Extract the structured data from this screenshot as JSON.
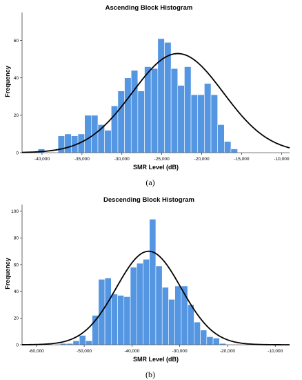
{
  "chart_data": [
    {
      "type": "bar",
      "title": "Ascending Block Histogram",
      "xlabel": "SMR Level (dB)",
      "ylabel": "Frequency",
      "caption": "(a)",
      "xlim": [
        -42500,
        -9000
      ],
      "ylim": [
        0,
        75
      ],
      "xticks": [
        -40000,
        -35000,
        -30000,
        -25000,
        -20000,
        -15000,
        -10000
      ],
      "xtick_labels": [
        "-40,000",
        "-35,000",
        "-30,000",
        "-25,000",
        "-20,000",
        "-15,000",
        "-10,000"
      ],
      "yticks": [
        0,
        20,
        40,
        60
      ],
      "ytick_labels": [
        "0",
        "20",
        "40",
        "60"
      ],
      "bin_start": -40500,
      "bin_width": 833,
      "values": [
        2,
        0,
        0,
        9,
        10,
        9,
        10,
        20,
        20,
        15,
        12,
        25,
        33,
        40,
        44,
        33,
        46,
        45,
        61,
        59,
        45,
        36,
        46,
        31,
        31,
        37,
        31,
        15,
        6,
        2
      ],
      "normal_curve": {
        "mean": -23000,
        "sd": 5700,
        "peak": 53
      },
      "grid": false
    },
    {
      "type": "bar",
      "title": "Descending Block Histogram",
      "xlabel": "SMR Level (dB)",
      "ylabel": "Frequency",
      "caption": "(b)",
      "xlim": [
        -63000,
        -7000
      ],
      "ylim": [
        0,
        105
      ],
      "xticks": [
        -60000,
        -50000,
        -40000,
        -30000,
        -20000,
        -10000
      ],
      "xtick_labels": [
        "-60,000",
        "-50,000",
        "-40,000",
        "-30,000",
        "-20,000",
        "-10,000"
      ],
      "yticks": [
        0,
        20,
        40,
        60,
        80,
        100
      ],
      "ytick_labels": [
        "0",
        "20",
        "40",
        "60",
        "80",
        "100"
      ],
      "bin_start": -55000,
      "bin_width": 1333,
      "values": [
        1,
        1,
        3,
        7,
        3,
        22,
        49,
        50,
        38,
        37,
        36,
        58,
        61,
        64,
        94,
        59,
        43,
        34,
        44,
        44,
        30,
        17,
        11,
        6,
        5,
        1
      ],
      "normal_curve": {
        "mean": -36500,
        "sd": 6800,
        "peak": 70
      },
      "grid": false
    }
  ]
}
